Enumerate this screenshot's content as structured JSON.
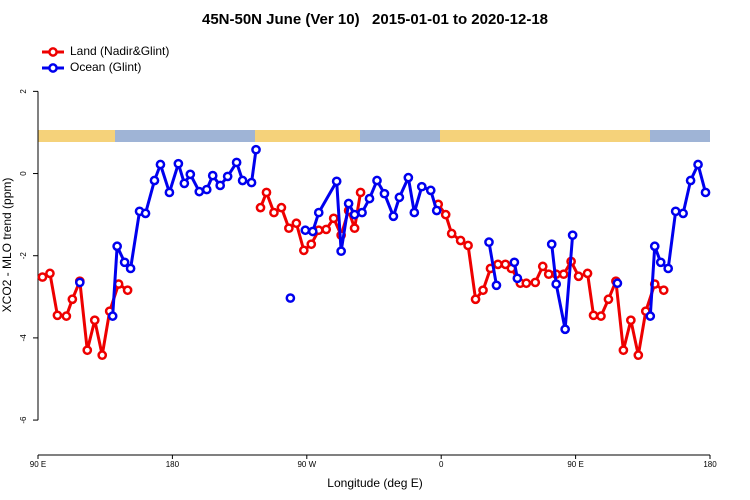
{
  "chart_data": {
    "type": "line",
    "title": "45N-50N June (Ver 10)   2015-01-01 to 2020-12-18",
    "x_label": "Longitude (deg E)",
    "y_label": "XCO2 - MLO trend (ppm)",
    "xlim": [
      90,
      540
    ],
    "xticks": [
      {
        "value": 90,
        "label": "90 E"
      },
      {
        "value": 180,
        "label": "180"
      },
      {
        "value": 270,
        "label": "90 W"
      },
      {
        "value": 360,
        "label": "0"
      },
      {
        "value": 450,
        "label": "90 E"
      },
      {
        "value": 540,
        "label": "180"
      }
    ],
    "ylim": [
      -6.85,
      3.25
    ],
    "yticks": [
      -6,
      -4,
      -2,
      0,
      2
    ],
    "legend": "top-left",
    "series": [
      {
        "name": "Land (Nadir&Glint)",
        "color": "#ee0000",
        "x": [
          93,
          98,
          103,
          109,
          113,
          118,
          123,
          128,
          133,
          138,
          144,
          150,
          null,
          239,
          243,
          248,
          253,
          258,
          263,
          268,
          273,
          278,
          283,
          288,
          293,
          298,
          302,
          306,
          null,
          358,
          363,
          367,
          373,
          378,
          383,
          388,
          393,
          398,
          403,
          407,
          413,
          417,
          423,
          428,
          432,
          437,
          442,
          447,
          452,
          458,
          462,
          467,
          472,
          477,
          482,
          487,
          492,
          497,
          503,
          509
        ],
        "values": [
          -2.52,
          -2.43,
          -3.45,
          -3.47,
          -3.06,
          -2.62,
          -4.3,
          -3.57,
          -4.42,
          -3.35,
          -2.69,
          -2.84,
          null,
          -0.83,
          -0.46,
          -0.95,
          -0.83,
          -1.33,
          -1.21,
          -1.87,
          -1.72,
          -1.38,
          -1.36,
          -1.09,
          -1.5,
          -0.9,
          -1.33,
          -0.46,
          null,
          -0.75,
          -1.0,
          -1.46,
          -1.63,
          -1.75,
          -3.06,
          -2.84,
          -2.31,
          -2.21,
          -2.21,
          -2.31,
          -2.67,
          -2.67,
          -2.65,
          -2.26,
          -2.45,
          -2.45,
          -2.45,
          -2.14,
          -2.5,
          -2.43,
          -3.45,
          -3.47,
          -3.06,
          -2.62,
          -4.3,
          -3.57,
          -4.42,
          -3.35,
          -2.69,
          -2.84
        ]
      },
      {
        "name": "Ocean (Glint)",
        "color": "#0000ee",
        "x": [
          118,
          null,
          140,
          143,
          148,
          152,
          158,
          162,
          168,
          172,
          178,
          184,
          188,
          192,
          198,
          203,
          207,
          212,
          217,
          223,
          227,
          233,
          236,
          null,
          259,
          null,
          269,
          274,
          278,
          290,
          293,
          298,
          302,
          307,
          312,
          317,
          322,
          328,
          332,
          338,
          342,
          347,
          353,
          357,
          null,
          392,
          397,
          null,
          409,
          411,
          null,
          434,
          437,
          443,
          448,
          null,
          478,
          null,
          500,
          503,
          507,
          512,
          517,
          522,
          527,
          532,
          537
        ],
        "values": [
          -2.65,
          null,
          -3.47,
          -1.77,
          -2.16,
          -2.31,
          -0.92,
          -0.97,
          -0.17,
          0.22,
          -0.46,
          0.24,
          -0.24,
          -0.02,
          -0.44,
          -0.39,
          -0.05,
          -0.29,
          -0.07,
          0.27,
          -0.17,
          -0.22,
          0.58,
          null,
          -3.03,
          null,
          -1.38,
          -1.41,
          -0.95,
          -0.19,
          -1.89,
          -0.73,
          -1.0,
          -0.95,
          -0.61,
          -0.17,
          -0.49,
          -1.04,
          -0.58,
          -0.1,
          -0.95,
          -0.32,
          -0.41,
          -0.9,
          null,
          -1.67,
          -2.72,
          null,
          -2.16,
          -2.55,
          null,
          -1.72,
          -2.69,
          -3.79,
          -1.5,
          null,
          -2.67,
          null,
          -3.47,
          -1.77,
          -2.16,
          -2.31,
          -0.92,
          -0.97,
          -0.17,
          0.22,
          -0.46
        ]
      }
    ]
  }
}
